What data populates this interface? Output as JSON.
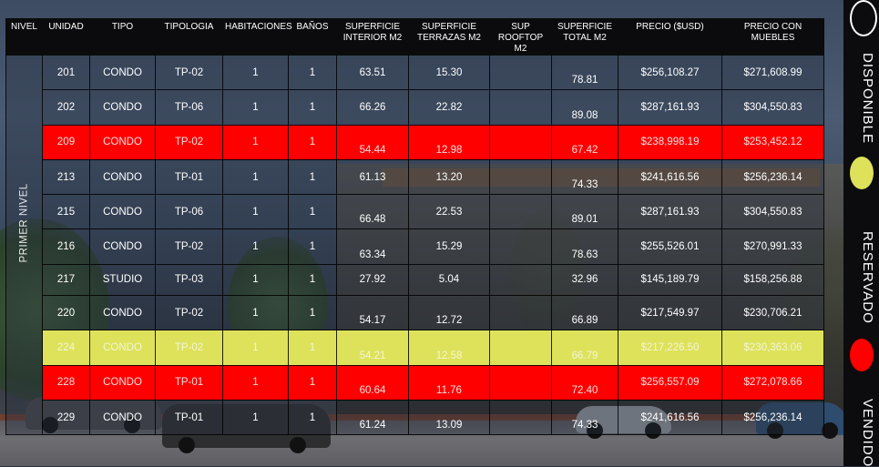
{
  "columns": [
    "NIVEL",
    "UNIDAD",
    "TIPO",
    "TIPOLOGIA",
    "HABITACIONES",
    "BAÑOS",
    "SUPERFICIE INTERIOR M2",
    "SUPERFICIE TERRAZAS M2",
    "SUP ROOFTOP M2",
    "SUPERFICIE TOTAL M2",
    "PRECIO ($USD)",
    "PRECIO CON MUEBLES"
  ],
  "nivel_label": "PRIMER NIVEL",
  "rows": [
    {
      "unidad": "201",
      "tipo": "CONDO",
      "tipologia": "TP-02",
      "habitaciones": "1",
      "banos": "1",
      "interior": "63.51",
      "terrazas": "15.30",
      "rooftop": "",
      "total": "78.81",
      "precio": "$256,108.27",
      "muebles": "$271,608.99",
      "status": "disponible"
    },
    {
      "unidad": "202",
      "tipo": "CONDO",
      "tipologia": "TP-06",
      "habitaciones": "1",
      "banos": "1",
      "interior": "66.26",
      "terrazas": "22.82",
      "rooftop": "",
      "total": "89.08",
      "precio": "$287,161.93",
      "muebles": "$304,550.83",
      "status": "disponible"
    },
    {
      "unidad": "209",
      "tipo": "CONDO",
      "tipologia": "TP-02",
      "habitaciones": "1",
      "banos": "1",
      "interior": "54.44",
      "terrazas": "12.98",
      "rooftop": "",
      "total": "67.42",
      "precio": "$238,998.19",
      "muebles": "$253,452.12",
      "status": "vendido"
    },
    {
      "unidad": "213",
      "tipo": "CONDO",
      "tipologia": "TP-01",
      "habitaciones": "1",
      "banos": "1",
      "interior": "61.13",
      "terrazas": "13.20",
      "rooftop": "",
      "total": "74.33",
      "precio": "$241,616.56",
      "muebles": "$256,236.14",
      "status": "disponible"
    },
    {
      "unidad": "215",
      "tipo": "CONDO",
      "tipologia": "TP-06",
      "habitaciones": "1",
      "banos": "1",
      "interior": "66.48",
      "terrazas": "22.53",
      "rooftop": "",
      "total": "89.01",
      "precio": "$287,161.93",
      "muebles": "$304,550.83",
      "status": "disponible"
    },
    {
      "unidad": "216",
      "tipo": "CONDO",
      "tipologia": "TP-02",
      "habitaciones": "1",
      "banos": "1",
      "interior": "63.34",
      "terrazas": "15.29",
      "rooftop": "",
      "total": "78.63",
      "precio": "$255,526.01",
      "muebles": "$270,991.33",
      "status": "disponible"
    },
    {
      "unidad": "217",
      "tipo": "STUDIO",
      "tipologia": "TP-03",
      "habitaciones": "1",
      "banos": "1",
      "interior": "27.92",
      "terrazas": "5.04",
      "rooftop": "",
      "total": "32.96",
      "precio": "$145,189.79",
      "muebles": "$158,256.88",
      "status": "disponible"
    },
    {
      "unidad": "220",
      "tipo": "CONDO",
      "tipologia": "TP-02",
      "habitaciones": "1",
      "banos": "1",
      "interior": "54.17",
      "terrazas": "12.72",
      "rooftop": "",
      "total": "66.89",
      "precio": "$217,549.97",
      "muebles": "$230,706.21",
      "status": "disponible"
    },
    {
      "unidad": "224",
      "tipo": "CONDO",
      "tipologia": "TP-02",
      "habitaciones": "1",
      "banos": "1",
      "interior": "54.21",
      "terrazas": "12.58",
      "rooftop": "",
      "total": "66.79",
      "precio": "$217,226.50",
      "muebles": "$230,363.06",
      "status": "reservado"
    },
    {
      "unidad": "228",
      "tipo": "CONDO",
      "tipologia": "TP-01",
      "habitaciones": "1",
      "banos": "1",
      "interior": "60.64",
      "terrazas": "11.76",
      "rooftop": "",
      "total": "72.40",
      "precio": "$256,557.09",
      "muebles": "$272,078.66",
      "status": "vendido"
    },
    {
      "unidad": "229",
      "tipo": "CONDO",
      "tipologia": "TP-01",
      "habitaciones": "1",
      "banos": "1",
      "interior": "61.24",
      "terrazas": "13.09",
      "rooftop": "",
      "total": "74.33",
      "precio": "$241,616.56",
      "muebles": "$256,236.14",
      "status": "disponible"
    }
  ],
  "legend": [
    {
      "label": "DISPONIBLE",
      "color": "#0c0c0e",
      "border": "#ffffff"
    },
    {
      "label": "RESERVADO",
      "color": "#dde25a",
      "border": "#dde25a"
    },
    {
      "label": "VENDIDO",
      "color": "#ff0000",
      "border": "#ff0000"
    }
  ]
}
